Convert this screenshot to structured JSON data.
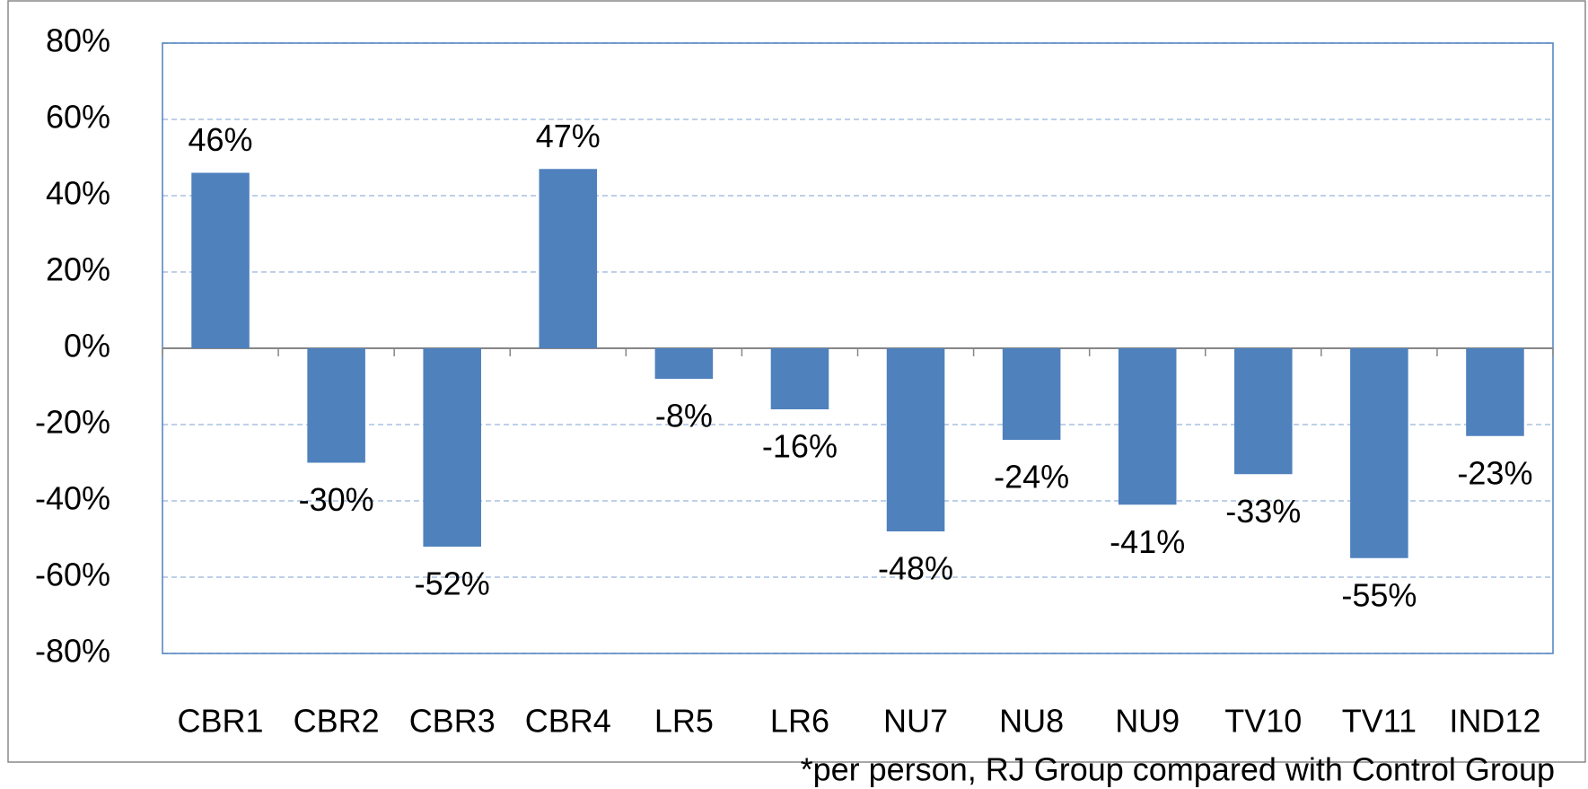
{
  "chart_data": {
    "type": "bar",
    "categories": [
      "CBR1",
      "CBR2",
      "CBR3",
      "CBR4",
      "LR5",
      "LR6",
      "NU7",
      "NU8",
      "NU9",
      "TV10",
      "TV11",
      "IND12"
    ],
    "values": [
      46,
      -30,
      -52,
      47,
      -8,
      -16,
      -48,
      -24,
      -41,
      -33,
      -55,
      -23
    ],
    "value_labels": [
      "46%",
      "-30%",
      "-52%",
      "47%",
      "-8%",
      "-16%",
      "-48%",
      "-24%",
      "-41%",
      "-33%",
      "-55%",
      "-23%"
    ],
    "color": "#4f81bd",
    "ylim": [
      -80,
      80
    ],
    "yticks": [
      {
        "value": -80,
        "label": "-80%"
      },
      {
        "value": -60,
        "label": "-60%"
      },
      {
        "value": -40,
        "label": "-40%"
      },
      {
        "value": -20,
        "label": "-20%"
      },
      {
        "value": 0,
        "label": "0%"
      },
      {
        "value": 20,
        "label": "20%"
      },
      {
        "value": 40,
        "label": "40%"
      },
      {
        "value": 60,
        "label": "60%"
      },
      {
        "value": 80,
        "label": "80%"
      }
    ],
    "grid": true,
    "note": "*per person, RJ Group compared with Control Group"
  }
}
